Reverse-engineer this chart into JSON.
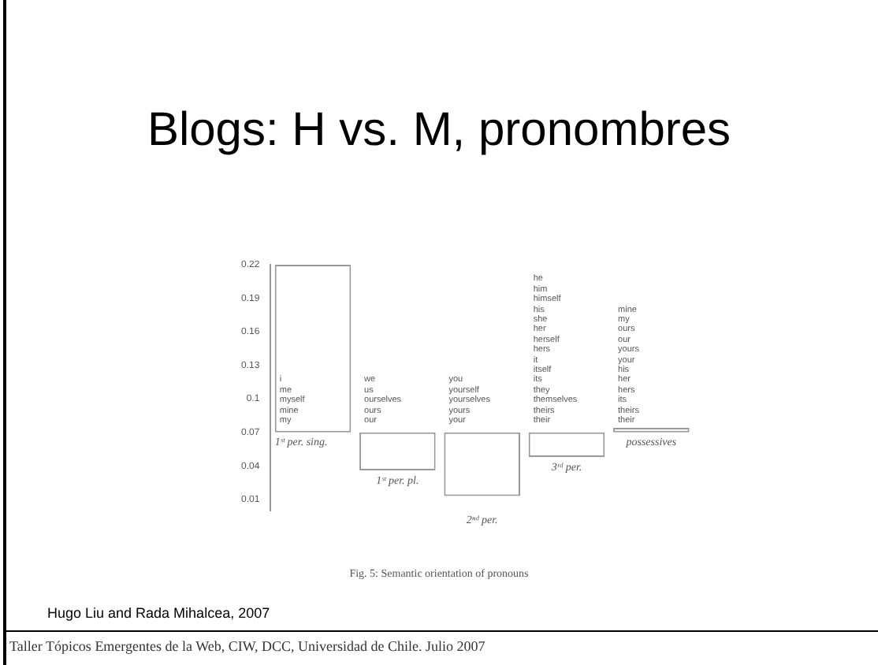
{
  "chart_data": {
    "type": "bar",
    "title": "Blogs: H vs. M, pronombres",
    "categories": [
      "1ˢᵗ per. sing.",
      "1ˢᵗ per. pl.",
      "2ⁿᵈ per.",
      "3ʳᵈ per.",
      "possessives"
    ],
    "base": [
      0.07,
      0.07,
      0.07,
      0.07,
      0.07
    ],
    "values": [
      0.15,
      -0.034,
      -0.057,
      -0.022,
      0.004
    ],
    "color": "#ffffff",
    "ylim": [
      0,
      0.22
    ],
    "yticks": [
      0.01,
      0.04,
      0.07,
      0.1,
      0.13,
      0.16,
      0.19,
      0.22
    ],
    "grid": false,
    "legend": false,
    "annotations": [
      "i\nme\nmyself\nmine\nmy",
      "we\nus\nourselves\nours\nour",
      "you\nyourself\nyourselves\nyours\nyour",
      "he\nhim\nhimself\nhis\nshe\nher\nherself\nhers\nit\nitself\nits\nthey\nthemselves\ntheirs\ntheir",
      "mine\nmy\nours\nour\nyours\nyour\nhis\nher\nhers\nits\ntheirs\ntheir",
      "Fig. 5: Semantic orientation of pronouns",
      "Hugo Liu and Rada Mihalcea, 2007",
      "Taller Tópicos Emergentes de la Web, CIW, DCC, Universidad de Chile. Julio 2007"
    ]
  }
}
